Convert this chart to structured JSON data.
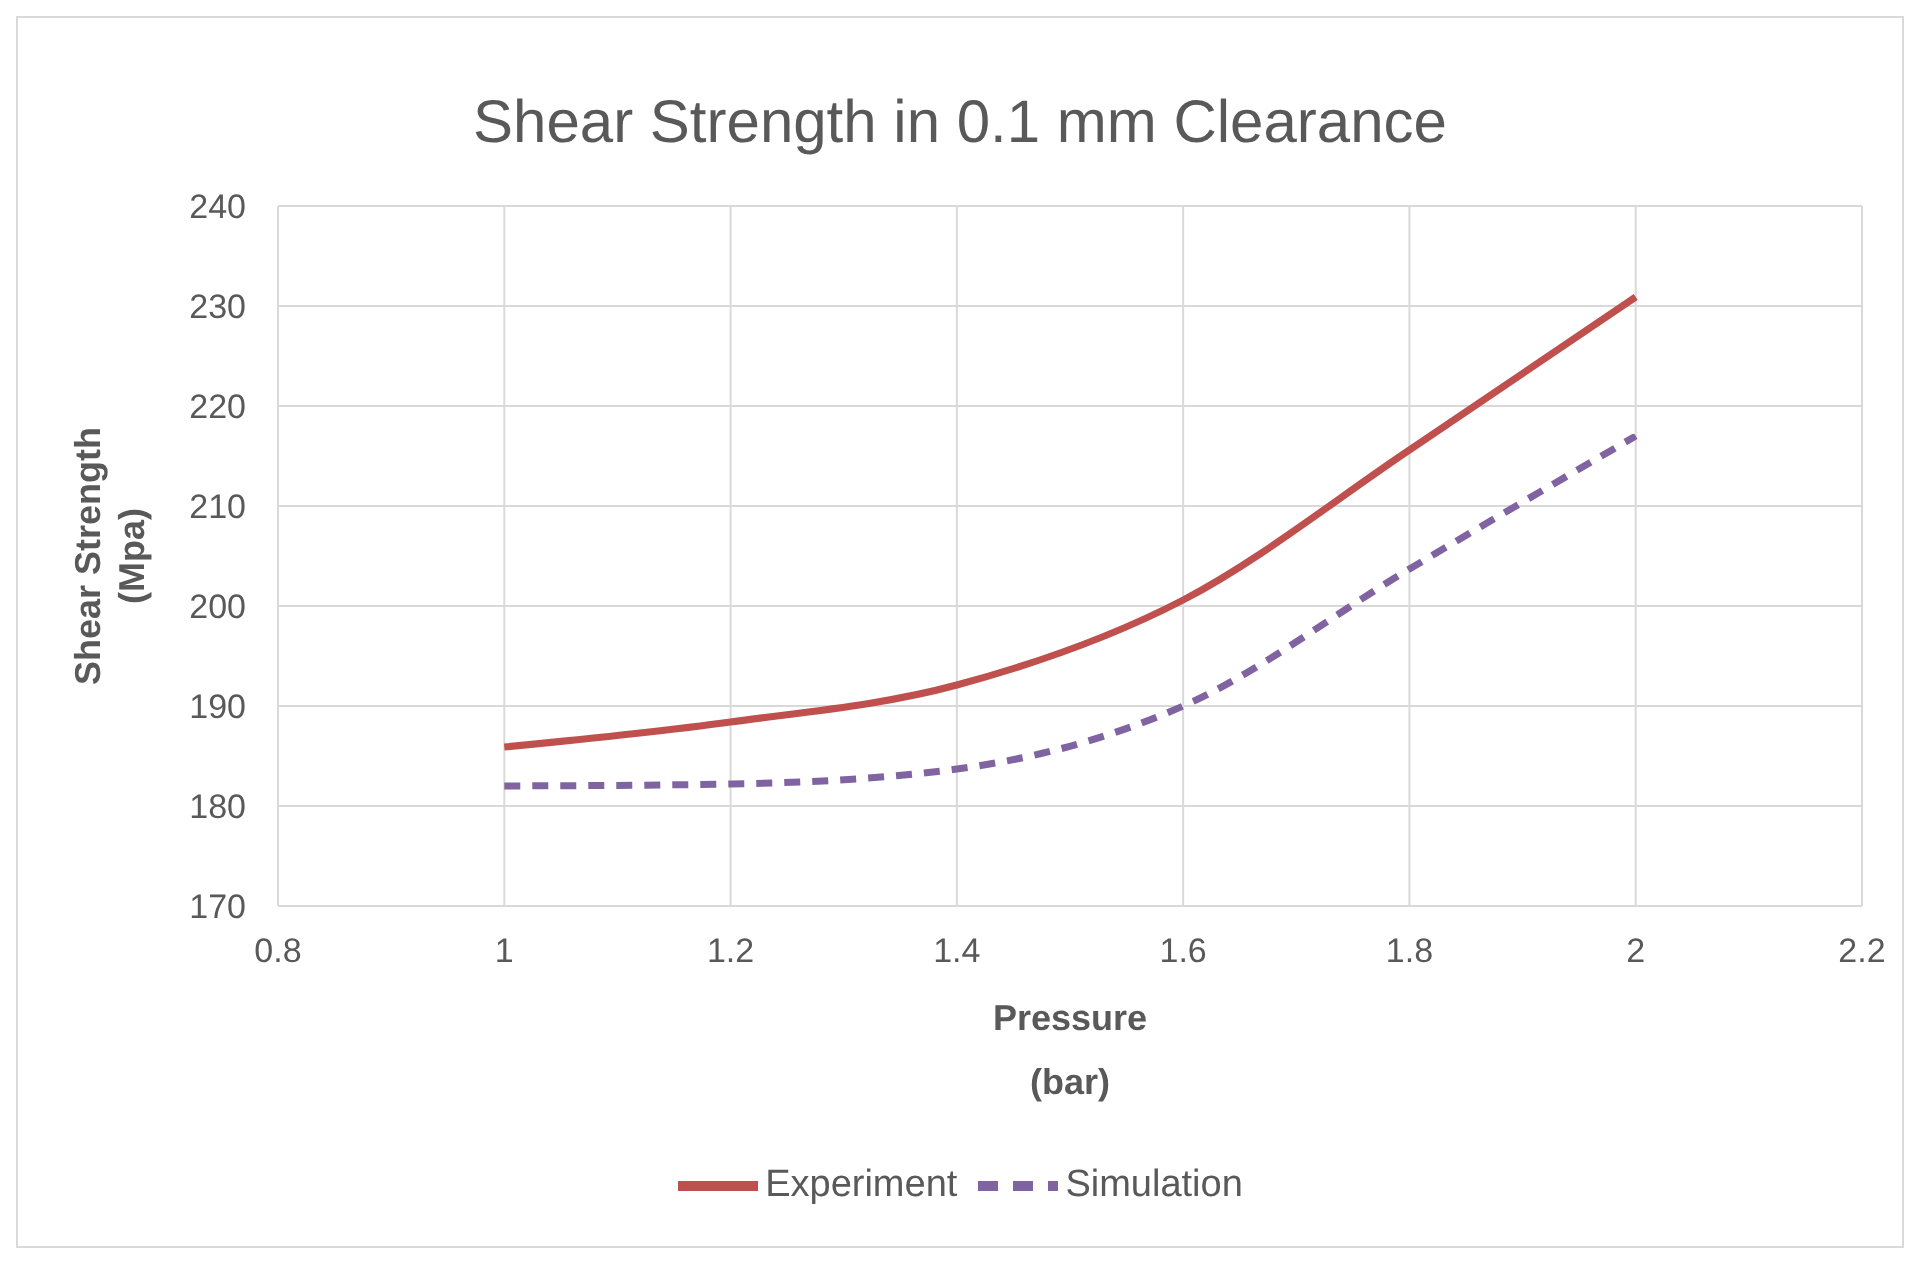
{
  "chart_data": {
    "type": "line",
    "title": "Shear Strength in 0.1 mm Clearance",
    "xlabel": "Pressure\n(bar)",
    "ylabel": "Shear Strength\n(Mpa)",
    "x": [
      1,
      1.2,
      1.4,
      1.6,
      1.8,
      2
    ],
    "series": [
      {
        "name": "Experiment",
        "color": "#c0504d",
        "values": [
          185.9,
          188.4,
          192.1,
          200.6,
          215.6,
          230.9
        ],
        "line_style": "solid"
      },
      {
        "name": "Simulation",
        "color": "#8064a2",
        "values": [
          182,
          182.2,
          183.7,
          190,
          203.7,
          217
        ],
        "line_style": "dashed"
      }
    ],
    "xlim": [
      0.8,
      2.2
    ],
    "xticks": [
      0.8,
      1,
      1.2,
      1.4,
      1.6,
      1.8,
      2,
      2.2
    ],
    "ylim": [
      170,
      240
    ],
    "yticks": [
      170,
      180,
      190,
      200,
      210,
      220,
      230,
      240
    ],
    "grid": true,
    "legend": "bottom",
    "marker": "none"
  }
}
